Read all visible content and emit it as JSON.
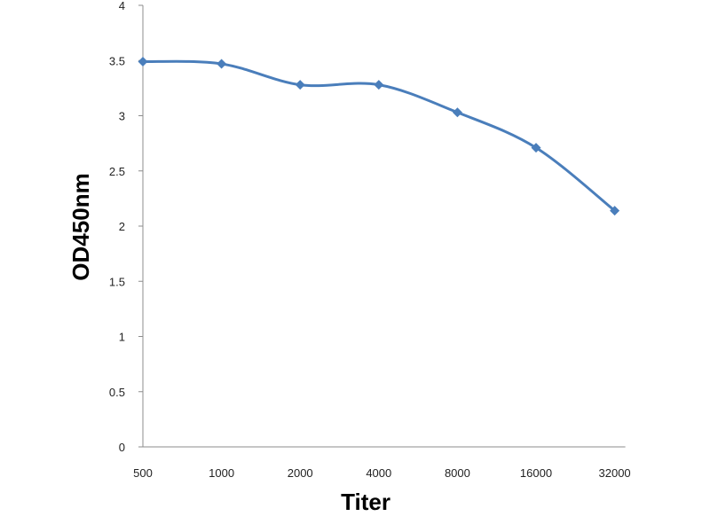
{
  "chart_data": {
    "type": "line",
    "title": "",
    "xlabel": "Titer",
    "ylabel": "OD450nm",
    "categories": [
      "500",
      "1000",
      "2000",
      "4000",
      "8000",
      "16000",
      "32000"
    ],
    "series": [
      {
        "values": [
          3.49,
          3.47,
          3.28,
          3.28,
          3.03,
          2.71,
          2.14
        ]
      }
    ],
    "ylim": [
      0,
      4
    ],
    "yticks": [
      "0",
      "0.5",
      "1",
      "1.5",
      "2",
      "2.5",
      "3",
      "3.5",
      "4"
    ],
    "grid": false,
    "legend": "none",
    "smooth": true,
    "line_color": "#4a7ebb",
    "marker": "diamond",
    "marker_color": "#4a7ebb",
    "axis_color": "#8c8c8c"
  }
}
